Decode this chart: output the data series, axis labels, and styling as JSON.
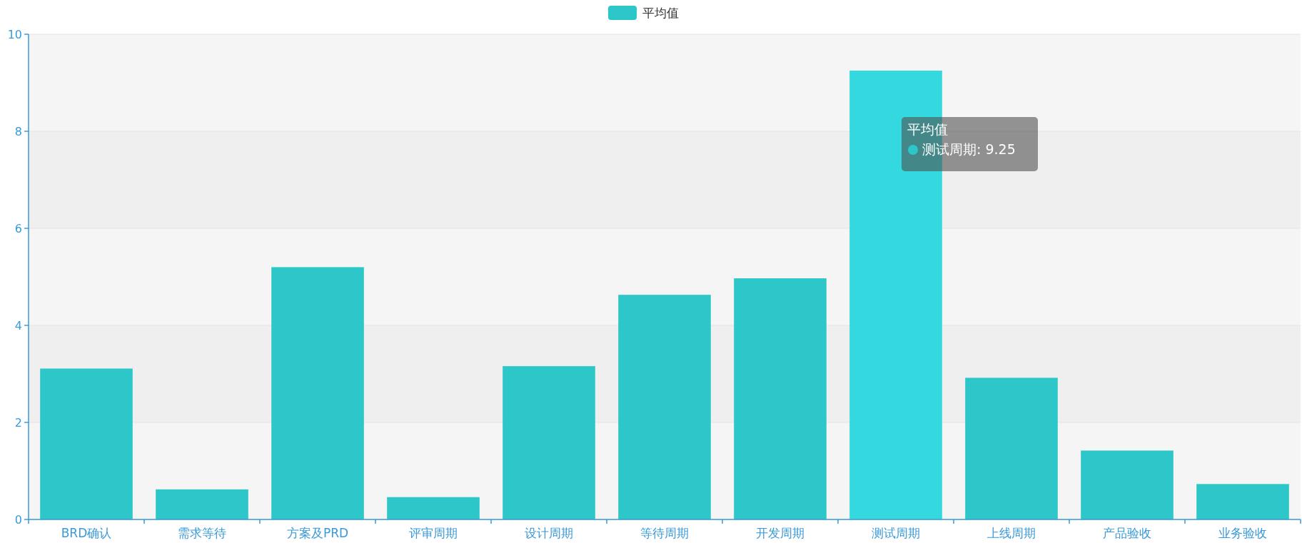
{
  "chart_data": {
    "type": "bar",
    "categories": [
      "BRD确认",
      "需求等待",
      "方案及PRD",
      "评审周期",
      "设计周期",
      "等待周期",
      "开发周期",
      "测试周期",
      "上线周期",
      "产品验收",
      "业务验收"
    ],
    "series": [
      {
        "name": "平均值",
        "color": "#2ec7c9",
        "colors": [
          "#2ec7c9",
          "#2ec7c9",
          "#2ec7c9",
          "#2ec7c9",
          "#2ec7c9",
          "#2ec7c9",
          "#2ec7c9",
          "#33d9df",
          "#2ec7c9",
          "#2ec7c9",
          "#2ec7c9"
        ],
        "values": [
          3.11,
          0.62,
          5.2,
          0.46,
          3.16,
          4.63,
          4.97,
          9.25,
          2.92,
          1.42,
          0.73
        ]
      }
    ],
    "ylim": [
      0,
      10
    ],
    "yticks": [
      0,
      2,
      4,
      6,
      8,
      10
    ],
    "grid": "y",
    "legend": "top",
    "annotations": [
      "平均值",
      "测试周期: 9.25"
    ]
  }
}
